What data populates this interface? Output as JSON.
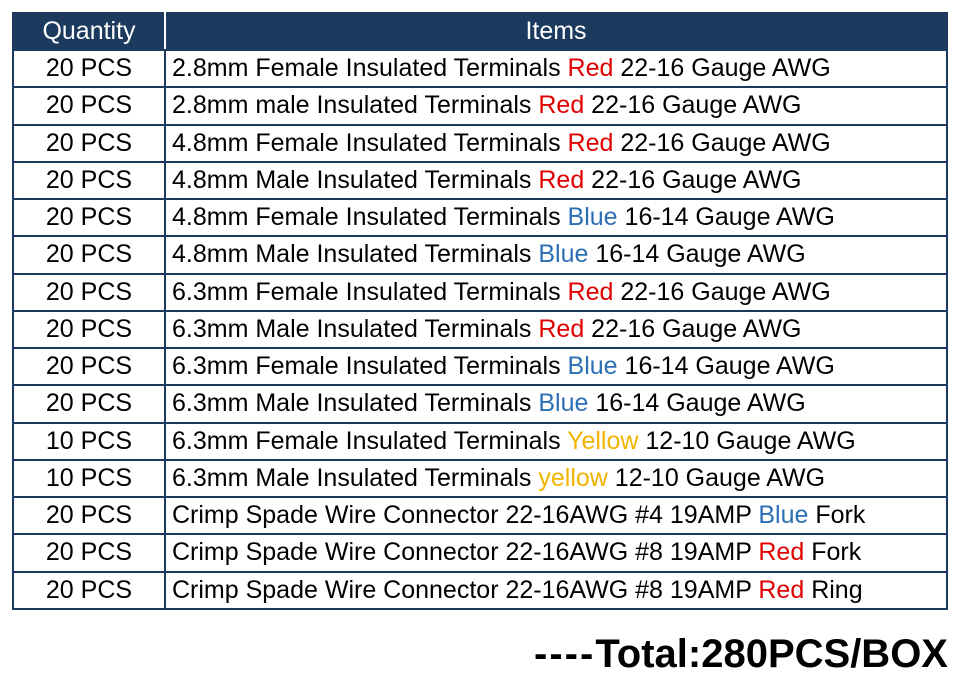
{
  "header": {
    "quantity": "Quantity",
    "items": "Items"
  },
  "colors": {
    "header_bg": "#1c3a5e",
    "header_fg": "#ffffff",
    "border": "#1c3a5e",
    "text": "#000000",
    "red": "#e00000",
    "blue": "#2b6fb5",
    "yellow": "#f1b400"
  },
  "rows": [
    {
      "qty": "20 PCS",
      "pre": "2.8mm Female Insulated Terminals ",
      "color_word": "Red",
      "color_class": "c-red",
      "post": " 22-16 Gauge AWG"
    },
    {
      "qty": "20 PCS",
      "pre": "2.8mm male Insulated Terminals ",
      "color_word": "Red",
      "color_class": "c-red",
      "post": " 22-16 Gauge AWG"
    },
    {
      "qty": "20 PCS",
      "pre": "4.8mm Female Insulated Terminals ",
      "color_word": "Red",
      "color_class": "c-red",
      "post": " 22-16 Gauge AWG"
    },
    {
      "qty": "20 PCS",
      "pre": "4.8mm Male Insulated Terminals ",
      "color_word": "Red",
      "color_class": "c-red",
      "post": " 22-16 Gauge AWG"
    },
    {
      "qty": "20 PCS",
      "pre": "4.8mm Female Insulated Terminals ",
      "color_word": "Blue",
      "color_class": "c-blue",
      "post": " 16-14 Gauge AWG"
    },
    {
      "qty": "20 PCS",
      "pre": "4.8mm Male Insulated Terminals ",
      "color_word": "Blue",
      "color_class": "c-blue",
      "post": " 16-14 Gauge AWG"
    },
    {
      "qty": "20 PCS",
      "pre": "6.3mm Female Insulated Terminals ",
      "color_word": "Red",
      "color_class": "c-red",
      "post": " 22-16 Gauge AWG"
    },
    {
      "qty": "20 PCS",
      "pre": "6.3mm Male Insulated Terminals ",
      "color_word": "Red",
      "color_class": "c-red",
      "post": " 22-16 Gauge AWG"
    },
    {
      "qty": "20 PCS",
      "pre": "6.3mm Female Insulated Terminals ",
      "color_word": "Blue",
      "color_class": "c-blue",
      "post": " 16-14 Gauge AWG"
    },
    {
      "qty": "20 PCS",
      "pre": "6.3mm Male Insulated Terminals ",
      "color_word": "Blue",
      "color_class": "c-blue",
      "post": " 16-14 Gauge AWG"
    },
    {
      "qty": "10 PCS",
      "pre": "6.3mm Female Insulated Terminals ",
      "color_word": "Yellow",
      "color_class": "c-yellow",
      "post": " 12-10 Gauge AWG"
    },
    {
      "qty": "10 PCS",
      "pre": "6.3mm Male Insulated Terminals ",
      "color_word": "yellow",
      "color_class": "c-yellow",
      "post": " 12-10 Gauge AWG"
    },
    {
      "qty": "20 PCS",
      "pre": "Crimp Spade Wire Connector 22-16AWG #4 19AMP ",
      "color_word": "Blue",
      "color_class": "c-blue",
      "post": " Fork"
    },
    {
      "qty": "20 PCS",
      "pre": "Crimp Spade Wire Connector 22-16AWG #8 19AMP ",
      "color_word": "Red",
      "color_class": "c-red",
      "post": " Fork"
    },
    {
      "qty": "20 PCS",
      "pre": "Crimp Spade Wire Connector 22-16AWG #8 19AMP ",
      "color_word": "Red",
      "color_class": "c-red",
      "post": " Ring"
    }
  ],
  "total": {
    "dashes": "----",
    "text": "Total:280PCS/BOX"
  }
}
